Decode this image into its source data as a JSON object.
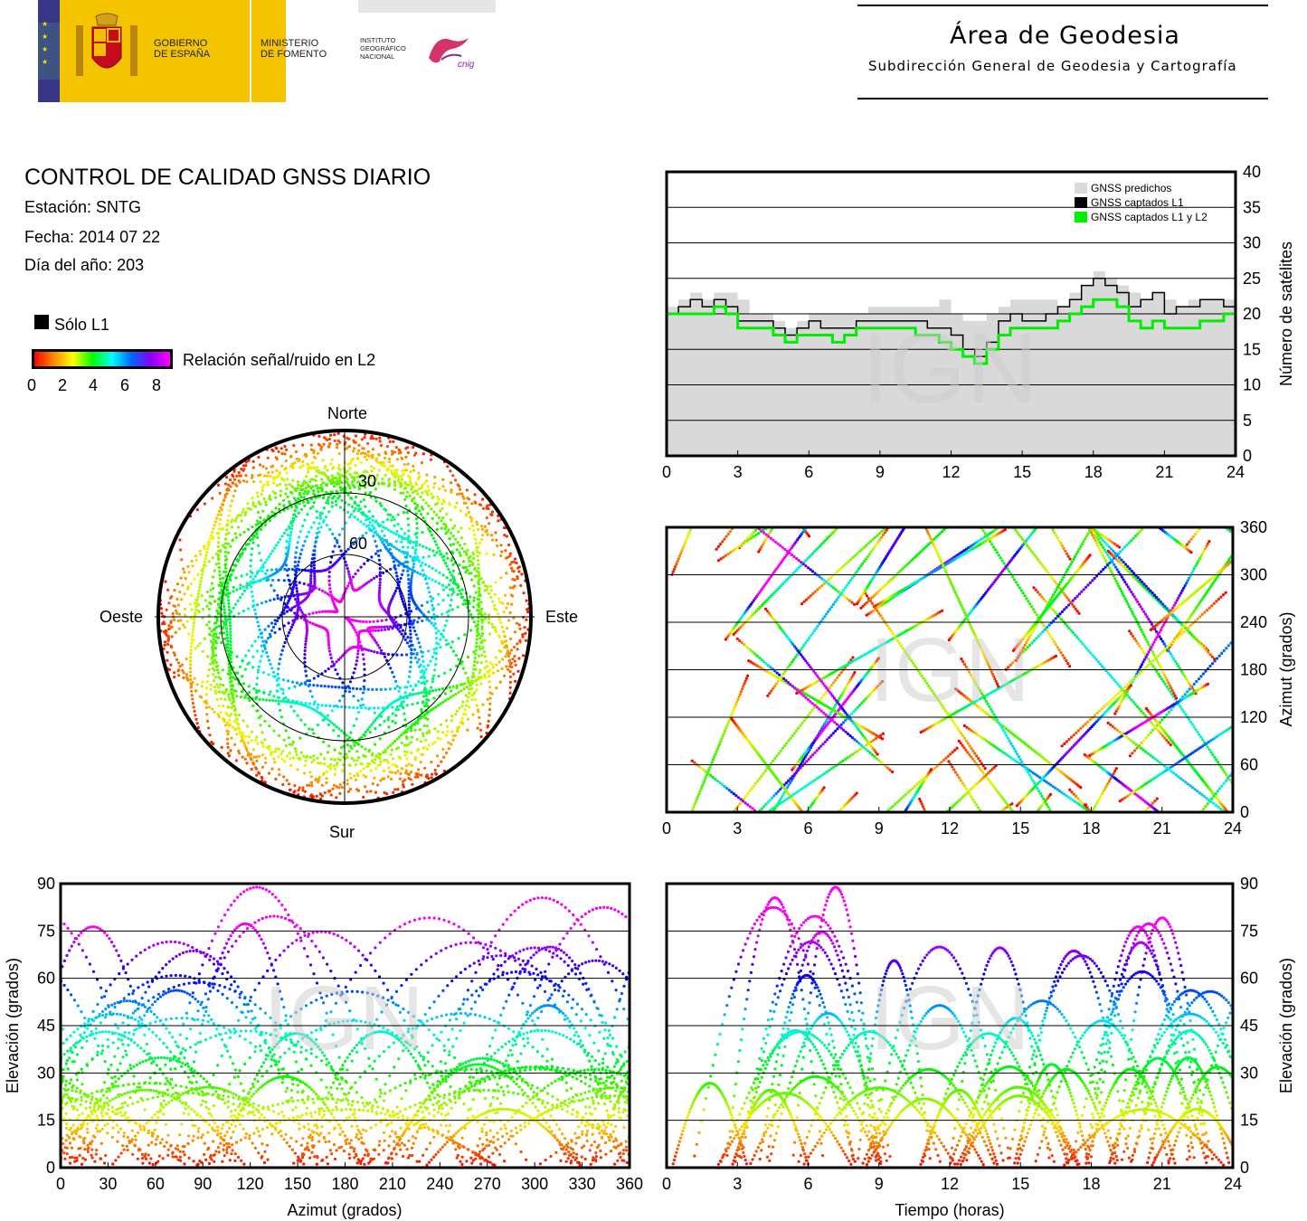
{
  "header": {
    "gov_line1": "GOBIERNO",
    "gov_line2": "DE ESPAÑA",
    "min_line1": "MINISTERIO",
    "min_line2": "DE FOMENTO",
    "inst_line1": "INSTITUTO",
    "inst_line2": "GEOGRÁFICO",
    "inst_line3": "NACIONAL",
    "cnig": "cnig",
    "area_title": "Área de Geodesia",
    "area_subtitle": "Subdirección General de Geodesia y Cartografía"
  },
  "report": {
    "title": "CONTROL DE CALIDAD GNSS DIARIO",
    "station": "Estación: SNTG",
    "date": "Fecha: 2014 07 22",
    "doy": "Día del año: 203"
  },
  "legend": {
    "only_l1": "Sólo L1",
    "snr_label": "Relación señal/ruido en L2",
    "snr_ticks": [
      "0",
      "2",
      "4",
      "6",
      "8"
    ]
  },
  "colors": {
    "predicted": "#d9d9d9",
    "captured_l1": "#000000",
    "captured_l1_l2": "#00ee00",
    "snr_scale": [
      "#ff0000",
      "#ff8800",
      "#ffff00",
      "#00ff00",
      "#00ffff",
      "#0000ff",
      "#ff00ff"
    ]
  },
  "watermark": "IGN",
  "chart_data": [
    {
      "type": "skyplot",
      "labels": {
        "north": "Norte",
        "south": "Sur",
        "east": "Este",
        "west": "Oeste"
      },
      "rings": [
        "30",
        "60"
      ]
    },
    {
      "type": "area",
      "ylabel": "Número de satélites",
      "xlim": [
        0,
        24
      ],
      "ylim": [
        0,
        40
      ],
      "xticks": [
        "0",
        "3",
        "6",
        "9",
        "12",
        "15",
        "18",
        "21",
        "24"
      ],
      "yticks": [
        "0",
        "5",
        "10",
        "15",
        "20",
        "25",
        "30",
        "35",
        "40"
      ],
      "legend_position": "top-right",
      "series": [
        {
          "name": "GNSS predichos",
          "x": [
            0,
            0.5,
            1,
            1.5,
            2,
            2.5,
            3,
            3.5,
            4,
            4.5,
            5,
            5.5,
            6,
            6.5,
            7,
            7.5,
            8,
            8.5,
            9,
            9.5,
            10,
            10.5,
            11,
            11.5,
            12,
            12.5,
            13,
            13.5,
            14,
            14.5,
            15,
            15.5,
            16,
            16.5,
            17,
            17.5,
            18,
            18.5,
            19,
            19.5,
            20,
            20.5,
            21,
            21.5,
            22,
            22.5,
            23,
            23.5,
            24
          ],
          "values": [
            21,
            22,
            23,
            22,
            23,
            23,
            22,
            20,
            20,
            19,
            18,
            19,
            20,
            20,
            20,
            20,
            20,
            21,
            21,
            21,
            21,
            21,
            21,
            22,
            20,
            19,
            19,
            20,
            21,
            22,
            22,
            22,
            22,
            21,
            23,
            24,
            26,
            25,
            24,
            23,
            22,
            23,
            22,
            21,
            22,
            22,
            22,
            22,
            21
          ]
        },
        {
          "name": "GNSS captados L1",
          "x": [
            0,
            0.5,
            1,
            1.5,
            2,
            2.5,
            3,
            3.5,
            4,
            4.5,
            5,
            5.5,
            6,
            6.5,
            7,
            7.5,
            8,
            8.5,
            9,
            9.5,
            10,
            10.5,
            11,
            11.5,
            12,
            12.5,
            13,
            13.5,
            14,
            14.5,
            15,
            15.5,
            16,
            16.5,
            17,
            17.5,
            18,
            18.5,
            19,
            19.5,
            20,
            20.5,
            21,
            21.5,
            22,
            22.5,
            23,
            23.5,
            24
          ],
          "values": [
            20,
            21,
            22,
            21,
            22,
            21,
            19,
            19,
            19,
            18,
            17,
            18,
            19,
            18,
            18,
            18,
            19,
            19,
            19,
            19,
            19,
            19,
            18,
            18,
            17,
            15,
            14,
            16,
            19,
            20,
            19,
            19,
            20,
            21,
            22,
            24,
            25,
            24,
            23,
            21,
            22,
            23,
            20,
            21,
            21,
            22,
            22,
            21,
            20
          ]
        },
        {
          "name": "GNSS captados L1 y L2",
          "x": [
            0,
            0.5,
            1,
            1.5,
            2,
            2.5,
            3,
            3.5,
            4,
            4.5,
            5,
            5.5,
            6,
            6.5,
            7,
            7.5,
            8,
            8.5,
            9,
            9.5,
            10,
            10.5,
            11,
            11.5,
            12,
            12.5,
            13,
            13.5,
            14,
            14.5,
            15,
            15.5,
            16,
            16.5,
            17,
            17.5,
            18,
            18.5,
            19,
            19.5,
            20,
            20.5,
            21,
            21.5,
            22,
            22.5,
            23,
            23.5,
            24
          ],
          "values": [
            20,
            20,
            20,
            20,
            21,
            20,
            18,
            18,
            18,
            17,
            16,
            17,
            17,
            17,
            16,
            17,
            18,
            18,
            18,
            18,
            18,
            17,
            17,
            16,
            15,
            14,
            13,
            15,
            17,
            18,
            18,
            18,
            18,
            19,
            20,
            21,
            22,
            22,
            21,
            19,
            18,
            19,
            18,
            18,
            18,
            19,
            19,
            20,
            19
          ]
        }
      ]
    },
    {
      "type": "scatter",
      "ylabel": "Azimut (grados)",
      "xlim": [
        0,
        24
      ],
      "ylim": [
        0,
        360
      ],
      "xticks": [
        "0",
        "3",
        "6",
        "9",
        "12",
        "15",
        "18",
        "21",
        "24"
      ],
      "yticks": [
        "0",
        "60",
        "120",
        "180",
        "240",
        "300",
        "360"
      ]
    },
    {
      "type": "scatter",
      "xlabel": "Azimut (grados)",
      "ylabel": "Elevación (grados)",
      "xlim": [
        0,
        360
      ],
      "ylim": [
        0,
        90
      ],
      "xticks": [
        "0",
        "30",
        "60",
        "90",
        "120",
        "150",
        "180",
        "210",
        "240",
        "270",
        "300",
        "330",
        "360"
      ],
      "yticks": [
        "0",
        "15",
        "30",
        "45",
        "60",
        "75",
        "90"
      ]
    },
    {
      "type": "scatter",
      "xlabel": "Tiempo (horas)",
      "ylabel": "Elevación (grados)",
      "xlim": [
        0,
        24
      ],
      "ylim": [
        0,
        90
      ],
      "xticks": [
        "0",
        "3",
        "6",
        "9",
        "12",
        "15",
        "18",
        "21",
        "24"
      ],
      "yticks": [
        "0",
        "15",
        "30",
        "45",
        "60",
        "75",
        "90"
      ]
    }
  ]
}
